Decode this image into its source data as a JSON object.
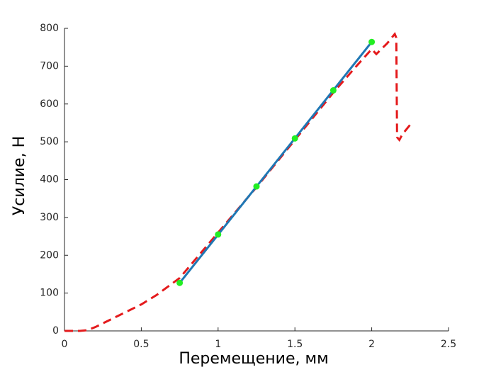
{
  "chart_data": {
    "type": "line",
    "xlabel": "Перемещение, мм",
    "ylabel": "Усилие, Н",
    "xlim": [
      0,
      2.5
    ],
    "xticks": [
      0,
      0.5,
      1,
      1.5,
      2,
      2.5
    ],
    "ylim": [
      0,
      800
    ],
    "yticks": [
      0,
      100,
      200,
      300,
      400,
      500,
      600,
      700,
      800
    ],
    "grid": false,
    "series": [
      {
        "color": "#e41a1c",
        "style": "dashed",
        "x": [
          0,
          0.1,
          0.15,
          0.2,
          0.3,
          0.4,
          0.5,
          0.6,
          0.75,
          1.0,
          1.25,
          1.5,
          1.75,
          1.9,
          2.0,
          2.03,
          2.1,
          2.15,
          2.16,
          2.165,
          2.18,
          2.2,
          2.25
        ],
        "values": [
          0,
          0,
          2,
          10,
          30,
          50,
          70,
          95,
          140,
          260,
          380,
          505,
          630,
          700,
          745,
          732,
          760,
          785,
          775,
          512,
          505,
          520,
          545
        ]
      },
      {
        "color": "#1f77b4",
        "style": "solid",
        "x": [
          0.75,
          2.0
        ],
        "values": [
          127,
          764
        ]
      },
      {
        "color": "#22ee22",
        "style": "markers",
        "x": [
          0.75,
          1.0,
          1.25,
          1.5,
          1.75,
          2.0
        ],
        "values": [
          127,
          255,
          382,
          509,
          636,
          764
        ]
      }
    ]
  }
}
